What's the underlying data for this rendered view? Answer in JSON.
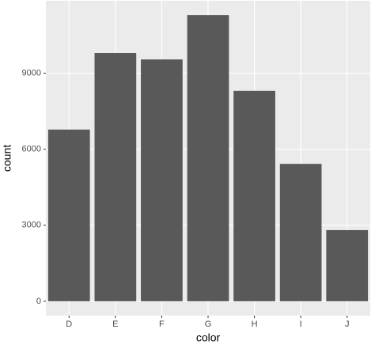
{
  "chart_data": {
    "type": "bar",
    "categories": [
      "D",
      "E",
      "F",
      "G",
      "H",
      "I",
      "J"
    ],
    "values": [
      6775,
      9797,
      9542,
      11292,
      8304,
      5422,
      2808
    ],
    "color": "#595959",
    "x_label": "color",
    "y_label": "count",
    "ylim": [
      -565,
      11857
    ],
    "yticks": [
      0,
      3000,
      6000,
      9000
    ],
    "grid": true
  }
}
